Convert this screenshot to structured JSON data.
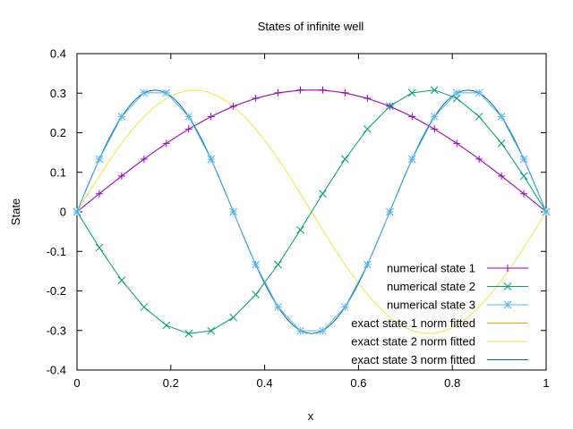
{
  "chart_data": {
    "type": "line",
    "title": "States of infinite well",
    "xlabel": "x",
    "ylabel": "State",
    "xlim": [
      0,
      1
    ],
    "ylim": [
      -0.4,
      0.4
    ],
    "xticks": [
      0,
      0.2,
      0.4,
      0.6,
      0.8,
      1
    ],
    "xtick_labels": [
      "0",
      "0.2",
      "0.4",
      "0.6",
      "0.8",
      "1"
    ],
    "yticks": [
      -0.4,
      -0.3,
      -0.2,
      -0.1,
      0,
      0.1,
      0.2,
      0.3,
      0.4
    ],
    "ytick_labels": [
      "-0.4",
      "-0.3",
      "-0.2",
      "-0.1",
      "0",
      "0.1",
      "0.2",
      "0.3",
      "0.4"
    ],
    "grid": false,
    "legend_position": "bottom-right",
    "amplitude": 0.3075,
    "x": [
      0,
      0.0476,
      0.0952,
      0.1429,
      0.1905,
      0.2381,
      0.2857,
      0.3333,
      0.381,
      0.4286,
      0.4762,
      0.5238,
      0.5714,
      0.619,
      0.6667,
      0.7143,
      0.7619,
      0.8095,
      0.8571,
      0.9048,
      0.9524,
      1
    ],
    "series": [
      {
        "name": "numerical state 1",
        "kind": "numerical",
        "mode": 1,
        "color": "#9400d3",
        "marker": "plus",
        "values": [
          0,
          0.0457,
          0.0905,
          0.1333,
          0.1732,
          0.2093,
          0.2408,
          0.2669,
          0.2871,
          0.3009,
          0.308,
          0.308,
          0.3009,
          0.2871,
          0.2669,
          0.2408,
          0.2093,
          0.1732,
          0.1333,
          0.0905,
          0.0457,
          0
        ]
      },
      {
        "name": "numerical state 2",
        "kind": "numerical",
        "mode": 2,
        "color": "#009e73",
        "marker": "cross",
        "values": [
          0,
          -0.0905,
          -0.1732,
          -0.2408,
          -0.2871,
          -0.308,
          -0.3009,
          -0.2669,
          -0.2093,
          -0.1333,
          -0.0457,
          0.0457,
          0.1333,
          0.2093,
          0.2669,
          0.3009,
          0.308,
          0.2871,
          0.2408,
          0.1732,
          0.0905,
          0
        ]
      },
      {
        "name": "numerical state 3",
        "kind": "numerical",
        "mode": 3,
        "color": "#56b4e9",
        "marker": "star",
        "values": [
          0,
          0.1333,
          0.2408,
          0.3009,
          0.3009,
          0.2408,
          0.1333,
          0,
          -0.1333,
          -0.2408,
          -0.3009,
          -0.3009,
          -0.2408,
          -0.1333,
          0,
          0.1333,
          0.2408,
          0.3009,
          0.3009,
          0.2408,
          0.1333,
          0
        ]
      },
      {
        "name": "exact state 1 norm fitted",
        "kind": "exact",
        "mode": 1,
        "color": "#e69f00",
        "marker": "none"
      },
      {
        "name": "exact state 2 norm fitted",
        "kind": "exact",
        "mode": 2,
        "color": "#f0e442",
        "marker": "none"
      },
      {
        "name": "exact state 3 norm fitted",
        "kind": "exact",
        "mode": 3,
        "color": "#0072b2",
        "marker": "none"
      }
    ]
  }
}
